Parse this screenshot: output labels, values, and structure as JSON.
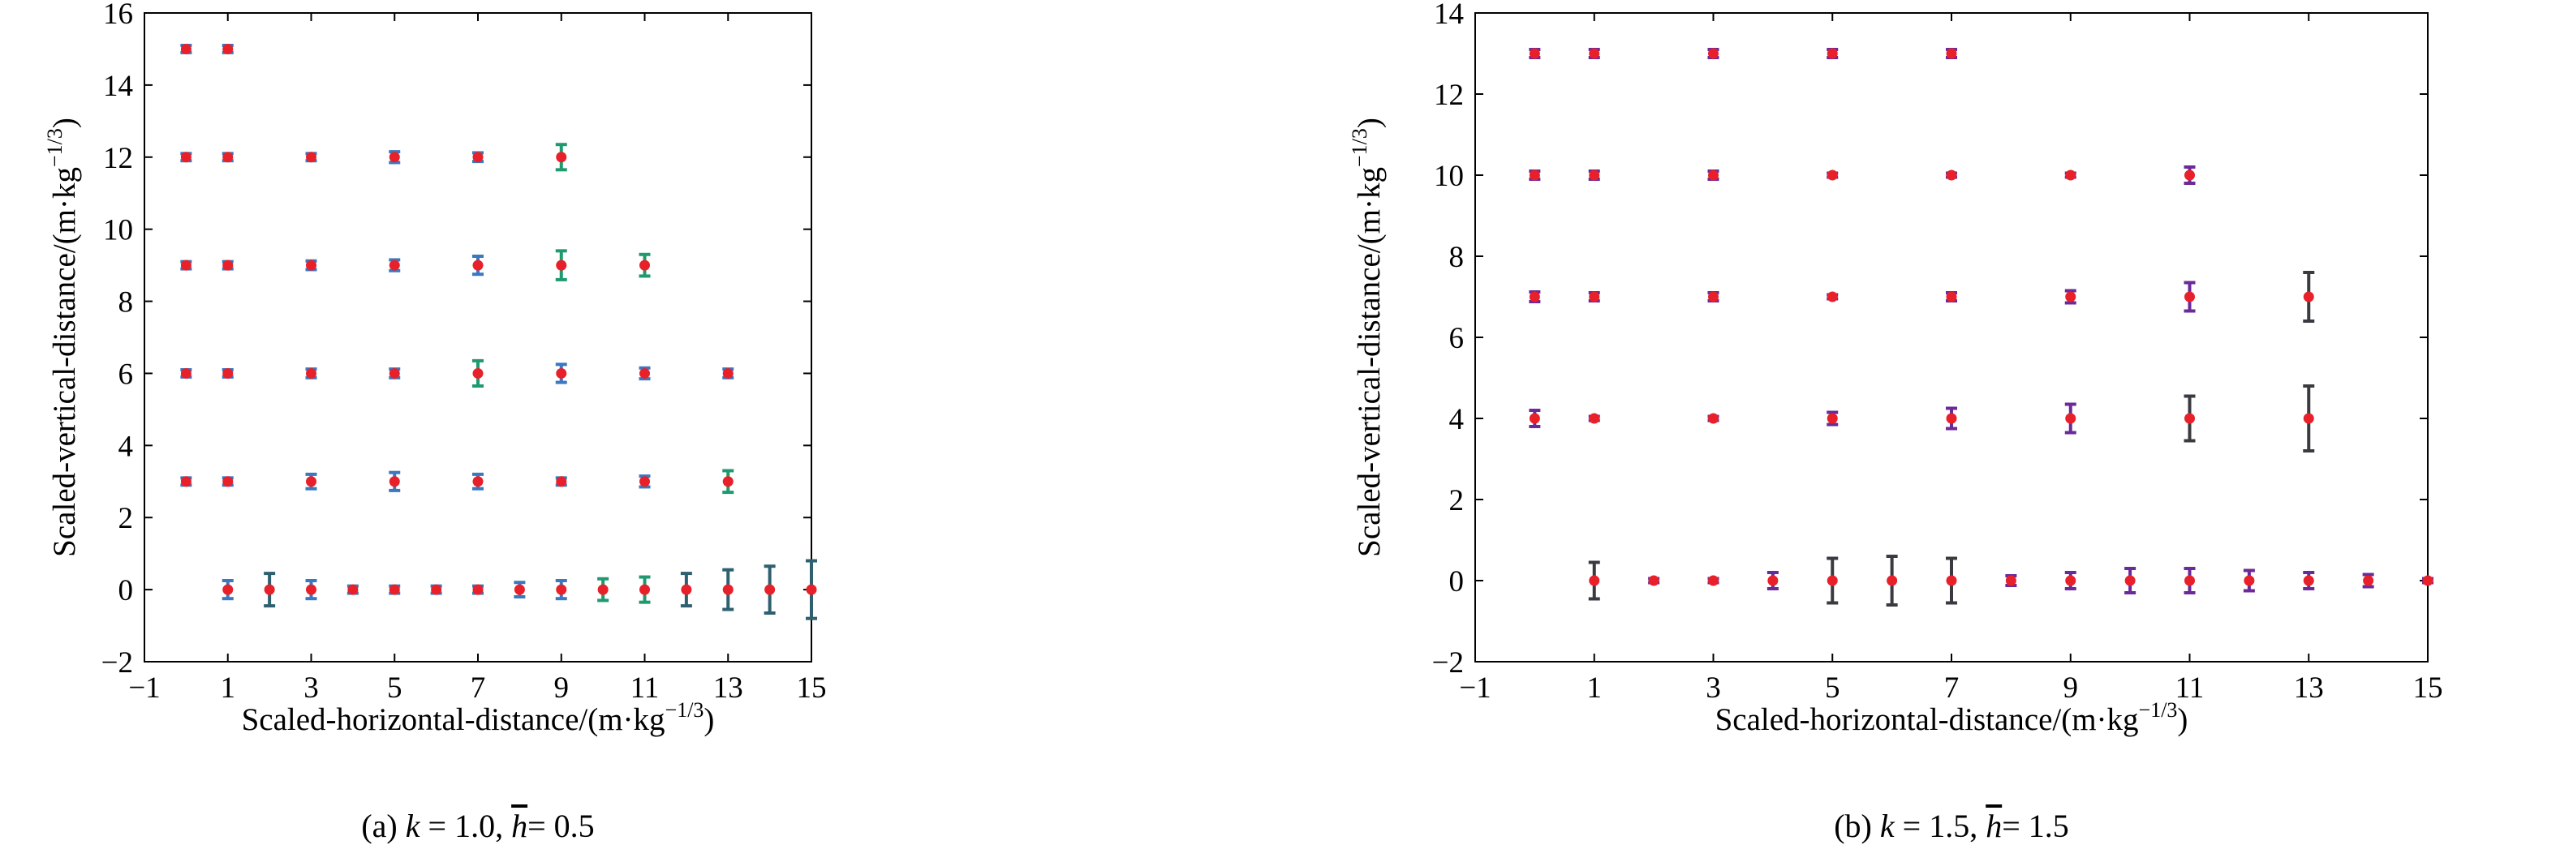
{
  "chart_data": [
    {
      "type": "scatter",
      "caption": {
        "prefix": "(a) ",
        "k_symbol": "k",
        "k_text": " = 1.0,  ",
        "h_symbol": "h",
        "h_text": "= 0.5"
      },
      "xlabel": {
        "main": "Scaled-horizontal-distance/(m·kg",
        "sup": "−1/3",
        "end": ")"
      },
      "ylabel": {
        "main": "Scaled-vertical-distance/(m·kg",
        "sup": "−1/3",
        "end": ")"
      },
      "xlim": [
        -1,
        15
      ],
      "ylim": [
        -2,
        16
      ],
      "xticks": [
        -1,
        1,
        3,
        5,
        7,
        9,
        11,
        13,
        15
      ],
      "xtick_labels": [
        "−1",
        "1",
        "3",
        "5",
        "7",
        "9",
        "11",
        "13",
        "15"
      ],
      "yticks": [
        -2,
        0,
        2,
        4,
        6,
        8,
        10,
        12,
        14,
        16
      ],
      "ytick_labels": [
        "−2",
        "0",
        "2",
        "4",
        "6",
        "8",
        "10",
        "12",
        "14",
        "16"
      ],
      "grid": false,
      "colors": {
        "errorbar": "#3a78c0",
        "errorbar_dark": "#2f6070",
        "errorbar_green": "#1f9a6e",
        "marker": "#e8202a"
      },
      "points": [
        {
          "x": 0,
          "y": 15,
          "err": 0.1
        },
        {
          "x": 1,
          "y": 15,
          "err": 0.1
        },
        {
          "x": 0,
          "y": 12,
          "err": 0.1
        },
        {
          "x": 1,
          "y": 12,
          "err": 0.1
        },
        {
          "x": 3,
          "y": 12,
          "err": 0.1
        },
        {
          "x": 5,
          "y": 12,
          "err": 0.15
        },
        {
          "x": 7,
          "y": 12,
          "err": 0.12
        },
        {
          "x": 9,
          "y": 12,
          "err": 0.35
        },
        {
          "x": 0,
          "y": 9,
          "err": 0.1
        },
        {
          "x": 1,
          "y": 9,
          "err": 0.1
        },
        {
          "x": 3,
          "y": 9,
          "err": 0.12
        },
        {
          "x": 5,
          "y": 9,
          "err": 0.15
        },
        {
          "x": 7,
          "y": 9,
          "err": 0.25
        },
        {
          "x": 9,
          "y": 9,
          "err": 0.4
        },
        {
          "x": 11,
          "y": 9,
          "err": 0.3
        },
        {
          "x": 0,
          "y": 6,
          "err": 0.1
        },
        {
          "x": 1,
          "y": 6,
          "err": 0.1
        },
        {
          "x": 3,
          "y": 6,
          "err": 0.12
        },
        {
          "x": 5,
          "y": 6,
          "err": 0.12
        },
        {
          "x": 7,
          "y": 6,
          "err": 0.35
        },
        {
          "x": 9,
          "y": 6,
          "err": 0.25
        },
        {
          "x": 11,
          "y": 6,
          "err": 0.15
        },
        {
          "x": 13,
          "y": 6,
          "err": 0.12
        },
        {
          "x": 0,
          "y": 3,
          "err": 0.1
        },
        {
          "x": 1,
          "y": 3,
          "err": 0.1
        },
        {
          "x": 3,
          "y": 3,
          "err": 0.2
        },
        {
          "x": 5,
          "y": 3,
          "err": 0.25
        },
        {
          "x": 7,
          "y": 3,
          "err": 0.2
        },
        {
          "x": 9,
          "y": 3,
          "err": 0.1
        },
        {
          "x": 11,
          "y": 3,
          "err": 0.15
        },
        {
          "x": 13,
          "y": 3,
          "err": 0.3
        },
        {
          "x": 1,
          "y": 0,
          "err": 0.25
        },
        {
          "x": 2,
          "y": 0,
          "err": 0.45
        },
        {
          "x": 3,
          "y": 0,
          "err": 0.25
        },
        {
          "x": 4,
          "y": 0,
          "err": 0.1
        },
        {
          "x": 5,
          "y": 0,
          "err": 0.1
        },
        {
          "x": 6,
          "y": 0,
          "err": 0.1
        },
        {
          "x": 7,
          "y": 0,
          "err": 0.1
        },
        {
          "x": 8,
          "y": 0,
          "err": 0.2
        },
        {
          "x": 9,
          "y": 0,
          "err": 0.25
        },
        {
          "x": 10,
          "y": 0,
          "err": 0.3
        },
        {
          "x": 11,
          "y": 0,
          "err": 0.35
        },
        {
          "x": 12,
          "y": 0,
          "err": 0.45
        },
        {
          "x": 13,
          "y": 0,
          "err": 0.55
        },
        {
          "x": 14,
          "y": 0,
          "err": 0.65
        },
        {
          "x": 15,
          "y": 0,
          "err": 0.8
        }
      ]
    },
    {
      "type": "scatter",
      "caption": {
        "prefix": "(b) ",
        "k_symbol": "k",
        "k_text": " = 1.5,  ",
        "h_symbol": "h",
        "h_text": "= 1.5"
      },
      "xlabel": {
        "main": "Scaled-horizontal-distance/(m·kg",
        "sup": "−1/3",
        "end": ")"
      },
      "ylabel": {
        "main": "Scaled-vertical-distance/(m·kg",
        "sup": "−1/3",
        "end": ")"
      },
      "xlim": [
        -1,
        15
      ],
      "ylim": [
        -2,
        14
      ],
      "xticks": [
        -1,
        1,
        3,
        5,
        7,
        9,
        11,
        13,
        15
      ],
      "xtick_labels": [
        "−1",
        "1",
        "3",
        "5",
        "7",
        "9",
        "11",
        "13",
        "15"
      ],
      "yticks": [
        -2,
        0,
        2,
        4,
        6,
        8,
        10,
        12,
        14
      ],
      "ytick_labels": [
        "−2",
        "0",
        "2",
        "4",
        "6",
        "8",
        "10",
        "12",
        "14"
      ],
      "grid": false,
      "colors": {
        "errorbar": "#6a2a9a",
        "errorbar_dark": "#3a3a40",
        "errorbar_green": "#6a2a9a",
        "marker": "#e8202a"
      },
      "points": [
        {
          "x": 0,
          "y": 13,
          "err": 0.1
        },
        {
          "x": 1,
          "y": 13,
          "err": 0.1
        },
        {
          "x": 3,
          "y": 13,
          "err": 0.1
        },
        {
          "x": 5,
          "y": 13,
          "err": 0.1
        },
        {
          "x": 7,
          "y": 13,
          "err": 0.1
        },
        {
          "x": 0,
          "y": 10,
          "err": 0.1
        },
        {
          "x": 1,
          "y": 10,
          "err": 0.1
        },
        {
          "x": 3,
          "y": 10,
          "err": 0.1
        },
        {
          "x": 5,
          "y": 10,
          "err": 0.05
        },
        {
          "x": 7,
          "y": 10,
          "err": 0.05
        },
        {
          "x": 9,
          "y": 10,
          "err": 0.05
        },
        {
          "x": 11,
          "y": 10,
          "err": 0.2
        },
        {
          "x": 0,
          "y": 7,
          "err": 0.12
        },
        {
          "x": 1,
          "y": 7,
          "err": 0.1
        },
        {
          "x": 3,
          "y": 7,
          "err": 0.1
        },
        {
          "x": 5,
          "y": 7,
          "err": 0.05
        },
        {
          "x": 7,
          "y": 7,
          "err": 0.1
        },
        {
          "x": 9,
          "y": 7,
          "err": 0.15
        },
        {
          "x": 11,
          "y": 7,
          "err": 0.35
        },
        {
          "x": 13,
          "y": 7,
          "err": 0.6
        },
        {
          "x": 0,
          "y": 4,
          "err": 0.2
        },
        {
          "x": 1,
          "y": 4,
          "err": 0.05
        },
        {
          "x": 3,
          "y": 4,
          "err": 0.05
        },
        {
          "x": 5,
          "y": 4,
          "err": 0.15
        },
        {
          "x": 7,
          "y": 4,
          "err": 0.25
        },
        {
          "x": 9,
          "y": 4,
          "err": 0.35
        },
        {
          "x": 11,
          "y": 4,
          "err": 0.55
        },
        {
          "x": 13,
          "y": 4,
          "err": 0.8
        },
        {
          "x": 1,
          "y": 0,
          "err": 0.45
        },
        {
          "x": 2,
          "y": 0,
          "err": 0.05
        },
        {
          "x": 3,
          "y": 0,
          "err": 0.05
        },
        {
          "x": 4,
          "y": 0,
          "err": 0.2
        },
        {
          "x": 5,
          "y": 0,
          "err": 0.55
        },
        {
          "x": 6,
          "y": 0,
          "err": 0.6
        },
        {
          "x": 7,
          "y": 0,
          "err": 0.55
        },
        {
          "x": 8,
          "y": 0,
          "err": 0.12
        },
        {
          "x": 9,
          "y": 0,
          "err": 0.2
        },
        {
          "x": 10,
          "y": 0,
          "err": 0.3
        },
        {
          "x": 11,
          "y": 0,
          "err": 0.3
        },
        {
          "x": 12,
          "y": 0,
          "err": 0.25
        },
        {
          "x": 13,
          "y": 0,
          "err": 0.2
        },
        {
          "x": 14,
          "y": 0,
          "err": 0.15
        },
        {
          "x": 15,
          "y": 0,
          "err": 0.05
        }
      ]
    }
  ]
}
